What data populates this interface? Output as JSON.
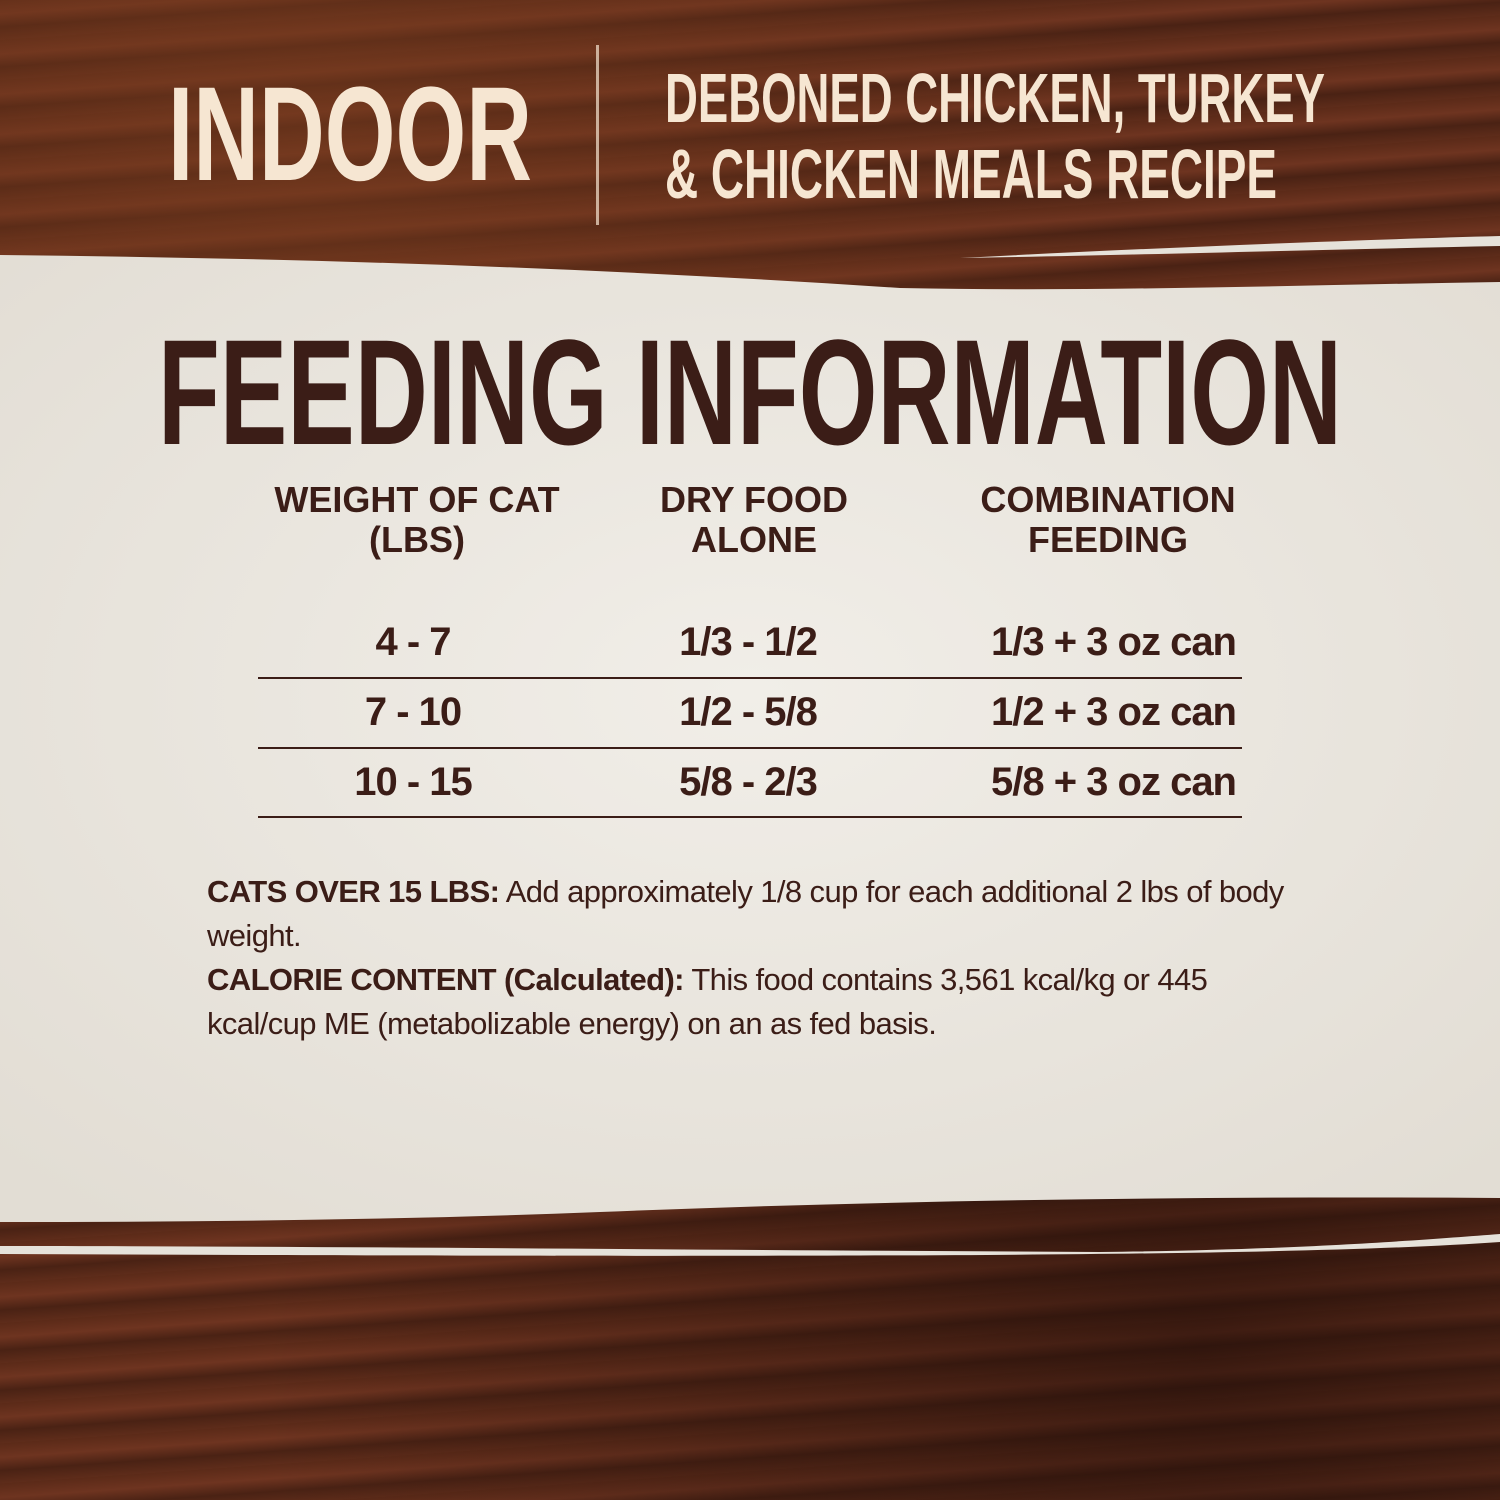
{
  "header": {
    "variant": "INDOOR",
    "recipe_line1": "DEBONED CHICKEN, TURKEY",
    "recipe_line2": "& CHICKEN MEALS RECIPE"
  },
  "title": "FEEDING INFORMATION",
  "table": {
    "columns": [
      {
        "line1": "WEIGHT OF CAT",
        "line2": "(LBS)"
      },
      {
        "line1": "DRY FOOD",
        "line2": "ALONE"
      },
      {
        "line1": "COMBINATION",
        "line2": "FEEDING"
      }
    ],
    "rows": [
      [
        "4 - 7",
        "1/3 - 1/2",
        "1/3 + 3 oz can"
      ],
      [
        "7 - 10",
        "1/2 - 5/8",
        "1/2 + 3 oz can"
      ],
      [
        "10 - 15",
        "5/8 - 2/3",
        "5/8 + 3 oz can"
      ]
    ]
  },
  "notes": {
    "over15_label": "CATS OVER 15 LBS:",
    "over15_text": " Add approximately 1/8 cup for each additional 2 lbs of body weight.",
    "calorie_label": "CALORIE CONTENT (Calculated):",
    "calorie_text": " This food contains 3,561 kcal/kg or 445 kcal/cup ME (metabolizable energy) on an as fed basis."
  },
  "colors": {
    "wood": "#5b2a18",
    "panel": "#ebe7df",
    "text_dark": "#3b1d17",
    "text_cream": "#f6e6d2"
  }
}
